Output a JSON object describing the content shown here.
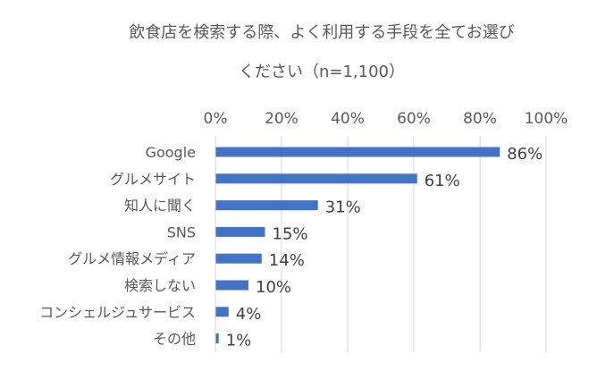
{
  "chart_data": {
    "type": "bar",
    "orientation": "horizontal",
    "title_lines": [
      "飲食店を検索する際、よく利用する手段を全てお選び",
      "ください（n=1,100）"
    ],
    "categories": [
      "Google",
      "グルメサイト",
      "知人に聞く",
      "SNS",
      "グルメ情報メディア",
      "検索しない",
      "コンシェルジュサービス",
      "その他"
    ],
    "values": [
      86,
      61,
      31,
      15,
      14,
      10,
      4,
      1
    ],
    "data_labels": [
      "86%",
      "61%",
      "31%",
      "15%",
      "14%",
      "10%",
      "4%",
      "1%"
    ],
    "x_ticks": [
      "0%",
      "20%",
      "40%",
      "60%",
      "80%",
      "100%"
    ],
    "xlim": [
      0,
      100
    ],
    "x_axis_position": "top",
    "grid": true,
    "legend": "none",
    "bar_color": "#4472C4",
    "grid_color": "#D9D9D9",
    "text_color": "#595959",
    "label_color": "#404040"
  }
}
